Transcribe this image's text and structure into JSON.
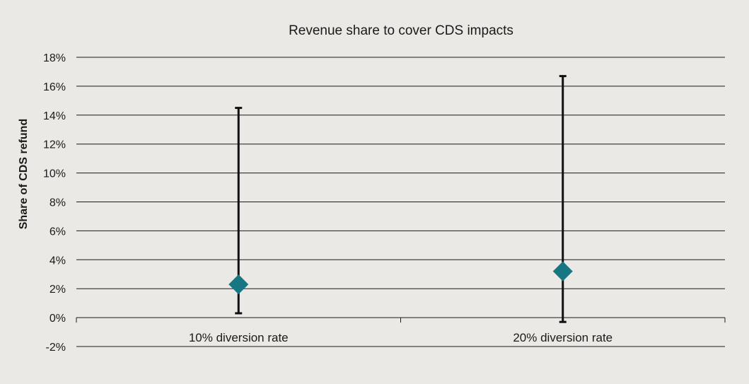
{
  "chart_data": {
    "type": "scatter",
    "title": "Revenue share to cover CDS impacts",
    "ylabel": "Share of CDS refund",
    "xlabel": "",
    "categories": [
      "10% diversion rate",
      "20% diversion rate"
    ],
    "y_ticks": [
      "-2%",
      "0%",
      "2%",
      "4%",
      "6%",
      "8%",
      "10%",
      "12%",
      "14%",
      "16%",
      "18%"
    ],
    "ylim": [
      -2,
      18
    ],
    "grid": true,
    "legend": "none",
    "series": [
      {
        "values": [
          2.3,
          3.2
        ],
        "error_low": [
          0.3,
          -0.3
        ],
        "error_high": [
          14.5,
          16.7
        ]
      }
    ],
    "colors": {
      "marker": "#167782",
      "error_bar": "#111111",
      "background": "#ebe9e5"
    }
  }
}
